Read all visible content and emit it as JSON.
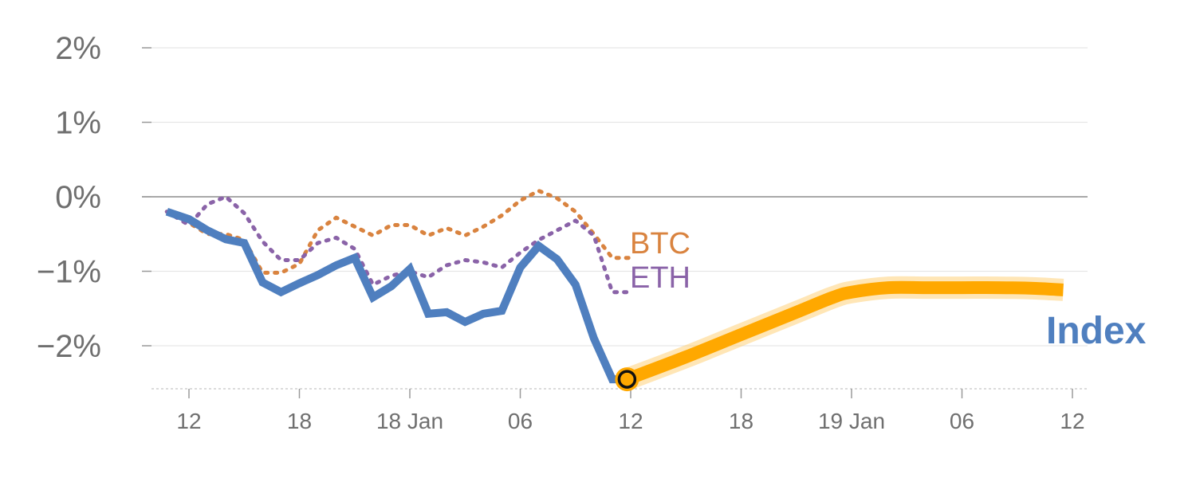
{
  "chart_data": {
    "type": "line",
    "title": "",
    "xlabel": "",
    "ylabel": "",
    "x_unit": "hours since the 12 tick",
    "xlim": [
      -2,
      49
    ],
    "ylim": [
      -2.6,
      2.3
    ],
    "grid": true,
    "y_ticks": [
      {
        "value": 2,
        "label": "2%"
      },
      {
        "value": 1,
        "label": "1%"
      },
      {
        "value": 0,
        "label": "0%"
      },
      {
        "value": -1,
        "label": "−1%"
      },
      {
        "value": -2,
        "label": "−2%"
      }
    ],
    "x_ticks": [
      {
        "value": 0,
        "label": "12"
      },
      {
        "value": 6,
        "label": "18"
      },
      {
        "value": 12,
        "label": "18 Jan"
      },
      {
        "value": 18,
        "label": "06"
      },
      {
        "value": 24,
        "label": "12"
      },
      {
        "value": 30,
        "label": "18"
      },
      {
        "value": 36,
        "label": "19 Jan"
      },
      {
        "value": 42,
        "label": "06"
      },
      {
        "value": 48,
        "label": "12"
      }
    ],
    "series": [
      {
        "name": "Index",
        "color": "#4f7fbf",
        "style": "solid",
        "x": [
          -1.2,
          0,
          1,
          2,
          3,
          4,
          5,
          6,
          7,
          8,
          9,
          10,
          11,
          12,
          13,
          14,
          15,
          16,
          17,
          18,
          19,
          20,
          21,
          22,
          23,
          24
        ],
        "y": [
          -0.2,
          -0.3,
          -0.45,
          -0.57,
          -0.62,
          -1.15,
          -1.28,
          -1.16,
          -1.05,
          -0.92,
          -0.82,
          -1.35,
          -1.2,
          -0.97,
          -1.57,
          -1.55,
          -1.68,
          -1.57,
          -1.53,
          -0.95,
          -0.66,
          -0.84,
          -1.18,
          -1.9,
          -2.45,
          -2.45
        ]
      },
      {
        "name": "BTC",
        "color": "#d9833f",
        "style": "dotted",
        "x": [
          -1.2,
          0,
          1,
          2,
          3,
          4,
          5,
          6,
          7,
          8,
          9,
          10,
          11,
          12,
          13,
          14,
          15,
          16,
          17,
          18,
          19,
          20,
          21,
          22,
          23,
          24
        ],
        "y": [
          -0.2,
          -0.35,
          -0.5,
          -0.5,
          -0.58,
          -1.02,
          -1.02,
          -0.9,
          -0.45,
          -0.28,
          -0.4,
          -0.52,
          -0.38,
          -0.38,
          -0.52,
          -0.42,
          -0.52,
          -0.4,
          -0.25,
          -0.05,
          0.08,
          -0.02,
          -0.2,
          -0.5,
          -0.82,
          -0.82
        ]
      },
      {
        "name": "ETH",
        "color": "#8a63a8",
        "style": "dotted",
        "x": [
          -1.2,
          0,
          1,
          2,
          3,
          4,
          5,
          6,
          7,
          8,
          9,
          10,
          11,
          12,
          13,
          14,
          15,
          16,
          17,
          18,
          19,
          20,
          21,
          22,
          23,
          24
        ],
        "y": [
          -0.2,
          -0.38,
          -0.1,
          0,
          -0.22,
          -0.6,
          -0.85,
          -0.85,
          -0.62,
          -0.55,
          -0.7,
          -1.18,
          -1.06,
          -1.0,
          -1.08,
          -0.92,
          -0.85,
          -0.88,
          -0.95,
          -0.75,
          -0.58,
          -0.45,
          -0.32,
          -0.52,
          -1.28,
          -1.28
        ]
      },
      {
        "name": "Index",
        "color": "#ffa800",
        "style": "thick-forecast",
        "x": [
          23.8,
          27,
          30,
          33,
          35,
          36,
          38,
          40,
          42,
          44,
          46,
          47.5
        ],
        "y": [
          -2.45,
          -2.15,
          -1.85,
          -1.55,
          -1.35,
          -1.28,
          -1.22,
          -1.22,
          -1.22,
          -1.22,
          -1.23,
          -1.25
        ]
      }
    ],
    "series_labels": [
      {
        "text": "BTC",
        "color": "#d9833f"
      },
      {
        "text": "ETH",
        "color": "#8a63a8"
      },
      {
        "text": "Index",
        "color": "#4f7fbf"
      }
    ],
    "marker": {
      "x": 23.8,
      "y": -2.45,
      "color": "#ffa800"
    }
  }
}
